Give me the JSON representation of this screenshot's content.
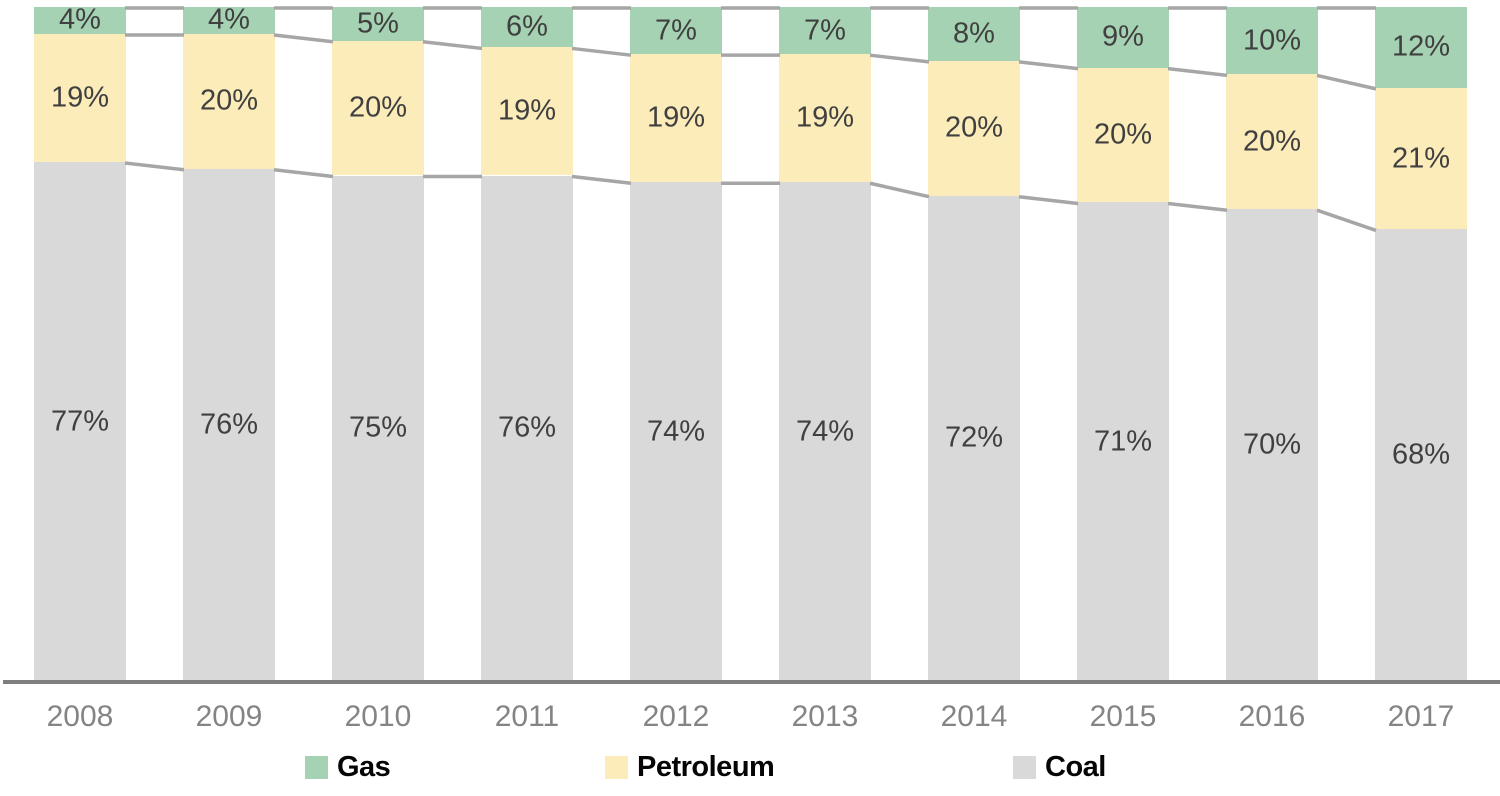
{
  "chart_data": {
    "type": "bar",
    "stacked": true,
    "percent_stacked": true,
    "title": "",
    "xlabel": "",
    "ylabel": "",
    "grid": false,
    "legend_position": "bottom",
    "categories": [
      "2008",
      "2009",
      "2010",
      "2011",
      "2012",
      "2013",
      "2014",
      "2015",
      "2016",
      "2017"
    ],
    "series": [
      {
        "name": "Gas",
        "color": "#a5d2b2",
        "values": [
          4,
          4,
          5,
          6,
          7,
          7,
          8,
          9,
          10,
          12
        ]
      },
      {
        "name": "Petroleum",
        "color": "#fcecba",
        "values": [
          19,
          20,
          20,
          19,
          19,
          19,
          20,
          20,
          20,
          21
        ]
      },
      {
        "name": "Coal",
        "color": "#d9d9d9",
        "values": [
          77,
          76,
          75,
          76,
          74,
          74,
          72,
          71,
          70,
          68
        ]
      }
    ],
    "data_label_format": "{value}%",
    "data_label_color": "#404040",
    "series_line_color": "#a6a6a6",
    "axis_line_color": "#7e7e7e",
    "tick_label_color": "#848484"
  }
}
